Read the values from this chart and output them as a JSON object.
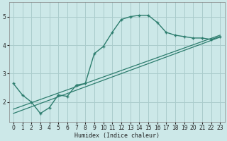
{
  "title": "",
  "xlabel": "Humidex (Indice chaleur)",
  "bg_color": "#cce8e8",
  "grid_color": "#aacccc",
  "line_color": "#2d7d6e",
  "xlim": [
    -0.5,
    23.5
  ],
  "ylim": [
    1.3,
    5.5
  ],
  "yticks": [
    2,
    3,
    4,
    5
  ],
  "xticks": [
    0,
    1,
    2,
    3,
    4,
    5,
    6,
    7,
    8,
    9,
    10,
    11,
    12,
    13,
    14,
    15,
    16,
    17,
    18,
    19,
    20,
    21,
    22,
    23
  ],
  "curve1_x": [
    0,
    1,
    2,
    3,
    4,
    5,
    6,
    7,
    8,
    9,
    10,
    11,
    12,
    13,
    14,
    15,
    16,
    17,
    18,
    19,
    20,
    21,
    22,
    23
  ],
  "curve1_y": [
    2.65,
    2.25,
    2.0,
    1.6,
    1.8,
    2.25,
    2.2,
    2.6,
    2.65,
    3.7,
    3.95,
    4.45,
    4.9,
    5.0,
    5.05,
    5.05,
    4.8,
    4.45,
    4.35,
    4.3,
    4.25,
    4.25,
    4.2,
    4.3
  ],
  "curve2_x": [
    0,
    23
  ],
  "curve2_y": [
    1.75,
    4.35
  ],
  "curve3_x": [
    0,
    23
  ],
  "curve3_y": [
    1.6,
    4.28
  ]
}
